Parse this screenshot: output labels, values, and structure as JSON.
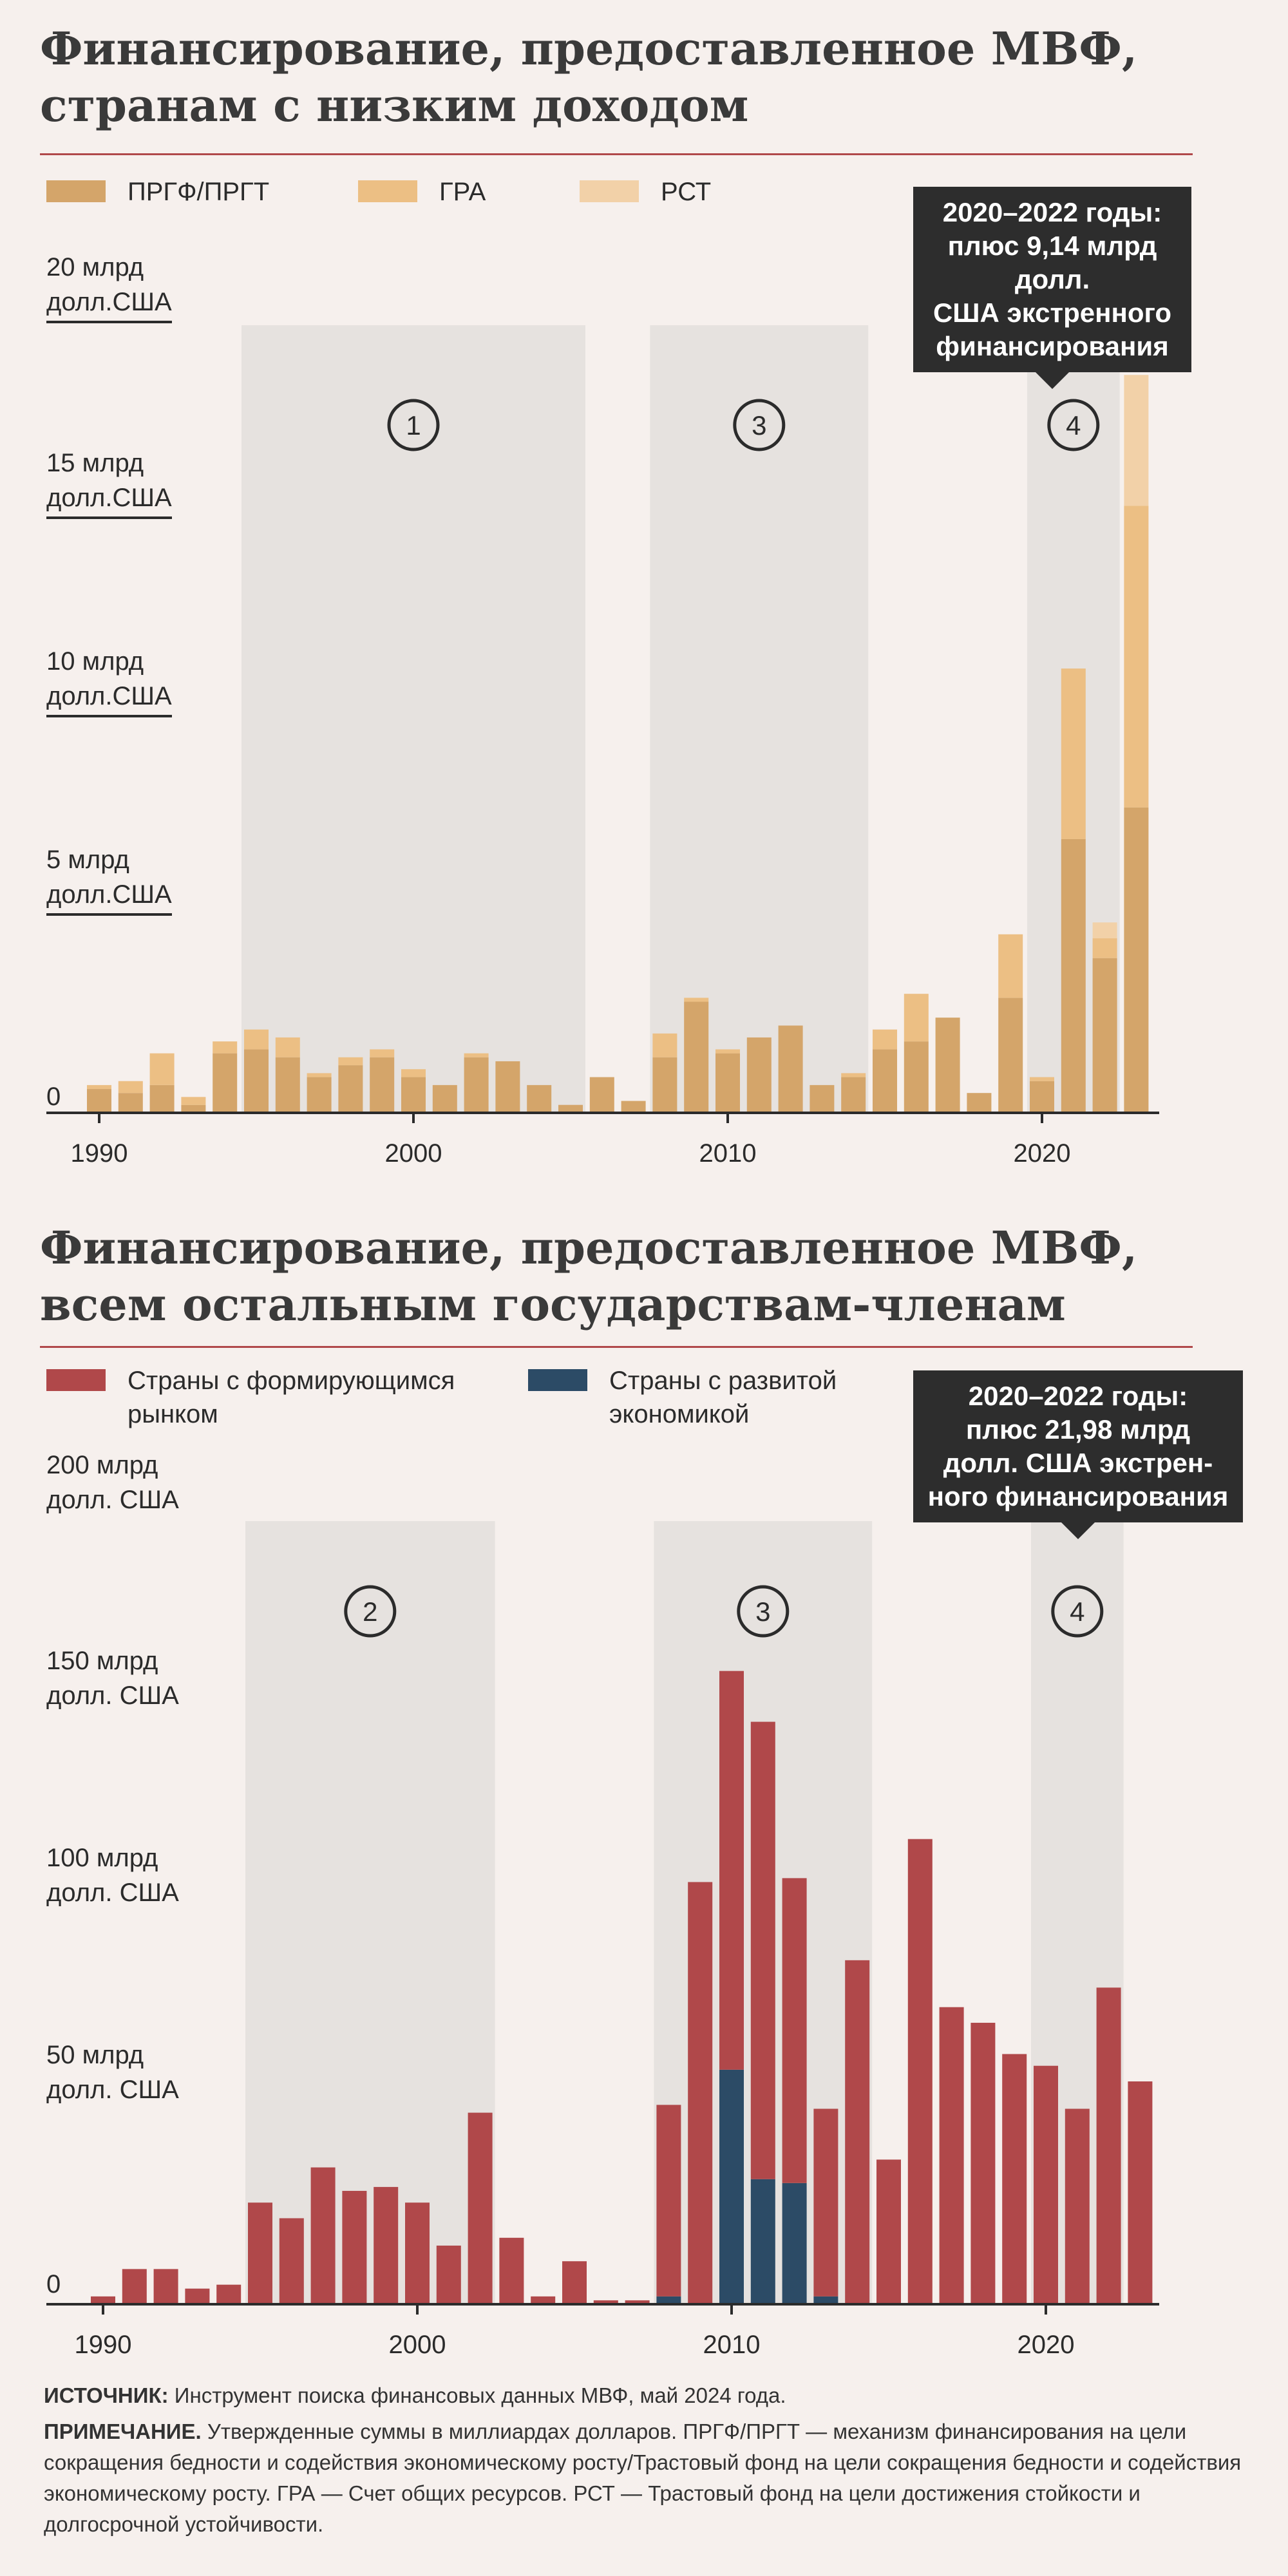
{
  "chart1": {
    "title_line1": "Финансирование, предоставленное МВФ,",
    "title_line2": "странам с низким доходом",
    "legend": [
      {
        "label": "ПРГФ/ПРГТ",
        "color": "#d4a56a"
      },
      {
        "label": "ГРА",
        "color": "#ecbf84"
      },
      {
        "label": "РСТ",
        "color": "#f2d1a8"
      }
    ],
    "ylabels": [
      {
        "line1": "20 млрд",
        "line2": "долл.США"
      },
      {
        "line1": "15 млрд",
        "line2": "долл.США"
      },
      {
        "line1": "10 млрд",
        "line2": "долл.США"
      },
      {
        "line1": "5 млрд",
        "line2": "долл.США"
      },
      {
        "line1": "0",
        "line2": ""
      }
    ],
    "callout_lines": [
      "2020–2022 годы:",
      "плюс 9,14 млрд долл.",
      "США экстренного",
      "финансирования"
    ],
    "period_markers": [
      "1",
      "3",
      "4"
    ]
  },
  "chart2": {
    "title_line1": "Финансирование, предоставленное МВФ,",
    "title_line2": "всем остальным государствам-членам",
    "legend": [
      {
        "line1": "Страны с формирующимся",
        "line2": "рынком",
        "color": "#b0484a"
      },
      {
        "line1": "Страны с развитой",
        "line2": "экономикой",
        "color": "#2c4b66"
      }
    ],
    "ylabels": [
      {
        "line1": "200 млрд",
        "line2": "долл. США"
      },
      {
        "line1": "150 млрд",
        "line2": "долл. США"
      },
      {
        "line1": "100 млрд",
        "line2": "долл. США"
      },
      {
        "line1": "50 млрд",
        "line2": "долл. США"
      },
      {
        "line1": "0",
        "line2": ""
      }
    ],
    "callout_lines": [
      "2020–2022 годы:",
      "плюс 21,98 млрд",
      "долл. США экстрен-",
      "ного финансирования"
    ],
    "period_markers": [
      "2",
      "3",
      "4"
    ]
  },
  "footer": {
    "source_label": "ИСТОЧНИК:",
    "source_text": " Инструмент поиска финансовых данных МВФ, май 2024 года.",
    "note_label": "ПРИМЕЧАНИЕ.",
    "note_text": " Утвержденные суммы в миллиардах долларов. ПРГФ/ПРГТ — механизм финансирования на цели сокращения бедности и содействия экономическому росту/Трастовый фонд на цели сокращения бедности и содействия экономическому росту. ГРА — Счет общих ресурсов. РСТ — Трастовый фонд на цели достижения стойкости и долгосрочной устойчивости."
  },
  "chart_data": [
    {
      "type": "bar",
      "stacked": true,
      "title": "Финансирование, предоставленное МВФ, странам с низким доходом",
      "ylabel": "млрд долл.США",
      "ylim": [
        0,
        20
      ],
      "x_ticks": [
        "1990",
        "2000",
        "2010",
        "2020"
      ],
      "x_start": 1990,
      "shaded_periods": [
        {
          "label": "1",
          "from": 1995,
          "to": 2005
        },
        {
          "label": "3",
          "from": 2008,
          "to": 2014
        },
        {
          "label": "4",
          "from": 2020,
          "to": 2022
        }
      ],
      "categories": [
        1990,
        1991,
        1992,
        1993,
        1994,
        1995,
        1996,
        1997,
        1998,
        1999,
        2000,
        2001,
        2002,
        2003,
        2004,
        2005,
        2006,
        2007,
        2008,
        2009,
        2010,
        2011,
        2012,
        2013,
        2014,
        2015,
        2016,
        2017,
        2018,
        2019,
        2020,
        2021,
        2022,
        2023
      ],
      "series": [
        {
          "name": "ПРГФ/ПРГТ",
          "color": "#d4a56a",
          "values": [
            0.6,
            0.5,
            0.7,
            0.2,
            1.5,
            1.6,
            1.4,
            0.9,
            1.2,
            1.4,
            0.9,
            0.7,
            1.4,
            1.3,
            0.7,
            0.2,
            0.9,
            0.3,
            1.4,
            2.8,
            1.5,
            1.9,
            2.2,
            0.7,
            0.9,
            1.6,
            1.8,
            2.4,
            0.5,
            2.9,
            0.8,
            6.9,
            3.9,
            7.7
          ]
        },
        {
          "name": "ГРА",
          "color": "#ecbf84",
          "values": [
            0.1,
            0.3,
            0.8,
            0.2,
            0.3,
            0.5,
            0.5,
            0.1,
            0.2,
            0.2,
            0.2,
            0.0,
            0.1,
            0.0,
            0.0,
            0.0,
            0.0,
            0.0,
            0.6,
            0.1,
            0.1,
            0.0,
            0.0,
            0.0,
            0.1,
            0.5,
            1.2,
            0.0,
            0.0,
            1.6,
            0.1,
            4.3,
            0.5,
            7.6
          ]
        },
        {
          "name": "РСТ",
          "color": "#f2d1a8",
          "values": [
            0,
            0,
            0,
            0,
            0,
            0,
            0,
            0,
            0,
            0,
            0,
            0,
            0,
            0,
            0,
            0,
            0,
            0,
            0,
            0,
            0,
            0,
            0,
            0,
            0,
            0,
            0,
            0,
            0,
            0,
            0,
            0,
            0.4,
            3.3
          ]
        }
      ]
    },
    {
      "type": "bar",
      "stacked": true,
      "title": "Финансирование, предоставленное МВФ, всем остальным государствам-членам",
      "ylabel": "млрд долл. США",
      "ylim": [
        0,
        200
      ],
      "x_ticks": [
        "1990",
        "2000",
        "2010",
        "2020"
      ],
      "x_start": 1990,
      "shaded_periods": [
        {
          "label": "2",
          "from": 1995,
          "to": 2002
        },
        {
          "label": "3",
          "from": 2008,
          "to": 2014
        },
        {
          "label": "4",
          "from": 2020,
          "to": 2022
        }
      ],
      "categories": [
        1990,
        1991,
        1992,
        1993,
        1994,
        1995,
        1996,
        1997,
        1998,
        1999,
        2000,
        2001,
        2002,
        2003,
        2004,
        2005,
        2006,
        2007,
        2008,
        2009,
        2010,
        2011,
        2012,
        2013,
        2014,
        2015,
        2016,
        2017,
        2018,
        2019,
        2020,
        2021,
        2022,
        2023
      ],
      "series": [
        {
          "name": "Страны с развитой экономикой",
          "color": "#2c4b66",
          "values": [
            0,
            0,
            0,
            0,
            0,
            0,
            0,
            0,
            0,
            0,
            0,
            0,
            0,
            0,
            0,
            0,
            0,
            0,
            2,
            0,
            60,
            32,
            31,
            2,
            0,
            0,
            0,
            0,
            0,
            0,
            0,
            0,
            0,
            0
          ]
        },
        {
          "name": "Страны с формирующимся рынком",
          "color": "#b0484a",
          "values": [
            2,
            9,
            9,
            4,
            5,
            26,
            22,
            35,
            29,
            30,
            26,
            15,
            49,
            17,
            2,
            11,
            1,
            1,
            49,
            108,
            102,
            117,
            78,
            48,
            88,
            37,
            119,
            76,
            72,
            64,
            61,
            50,
            81,
            57
          ]
        }
      ]
    }
  ]
}
